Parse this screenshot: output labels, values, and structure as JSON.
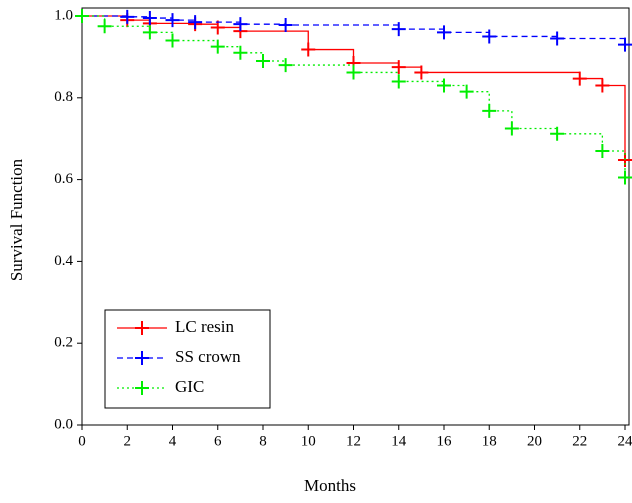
{
  "chart_data": {
    "type": "step",
    "xlabel": "Months",
    "ylabel": "Survival Function",
    "xlim": [
      0,
      24
    ],
    "ylim": [
      0,
      1
    ],
    "xticks": [
      0,
      2,
      4,
      6,
      8,
      10,
      12,
      14,
      16,
      18,
      20,
      22,
      24
    ],
    "yticks": [
      {
        "value": 0,
        "label": "0.0"
      },
      {
        "value": 0.2,
        "label": "0.2"
      },
      {
        "value": 0.4,
        "label": "0.4"
      },
      {
        "value": 0.6,
        "label": "0.6"
      },
      {
        "value": 0.8,
        "label": "0.8"
      },
      {
        "value": 1,
        "label": "1.0"
      }
    ],
    "legend": "lower left",
    "series": [
      {
        "name": "LC resin",
        "color": "#ff0000",
        "dash": "solid",
        "x": [
          0,
          2,
          3,
          5,
          6,
          7,
          10,
          12,
          14,
          15,
          22,
          23,
          24
        ],
        "values": [
          1.0,
          0.99,
          0.982,
          0.98,
          0.972,
          0.963,
          0.918,
          0.885,
          0.875,
          0.862,
          0.847,
          0.83,
          0.648
        ]
      },
      {
        "name": "SS crown",
        "color": "#0000ff",
        "dash": "dashed",
        "x": [
          0,
          2,
          3,
          4,
          5,
          7,
          9,
          14,
          16,
          18,
          21,
          24
        ],
        "values": [
          1.0,
          0.998,
          0.995,
          0.99,
          0.985,
          0.98,
          0.978,
          0.968,
          0.96,
          0.95,
          0.945,
          0.93
        ]
      },
      {
        "name": "GIC",
        "color": "#00ee00",
        "dash": "dotted",
        "x": [
          0,
          1,
          3,
          4,
          6,
          7,
          8,
          9,
          12,
          14,
          16,
          17,
          18,
          19,
          21,
          23,
          24
        ],
        "values": [
          1.0,
          0.975,
          0.96,
          0.94,
          0.925,
          0.91,
          0.89,
          0.88,
          0.862,
          0.84,
          0.83,
          0.815,
          0.768,
          0.725,
          0.712,
          0.67,
          0.605
        ]
      }
    ]
  }
}
